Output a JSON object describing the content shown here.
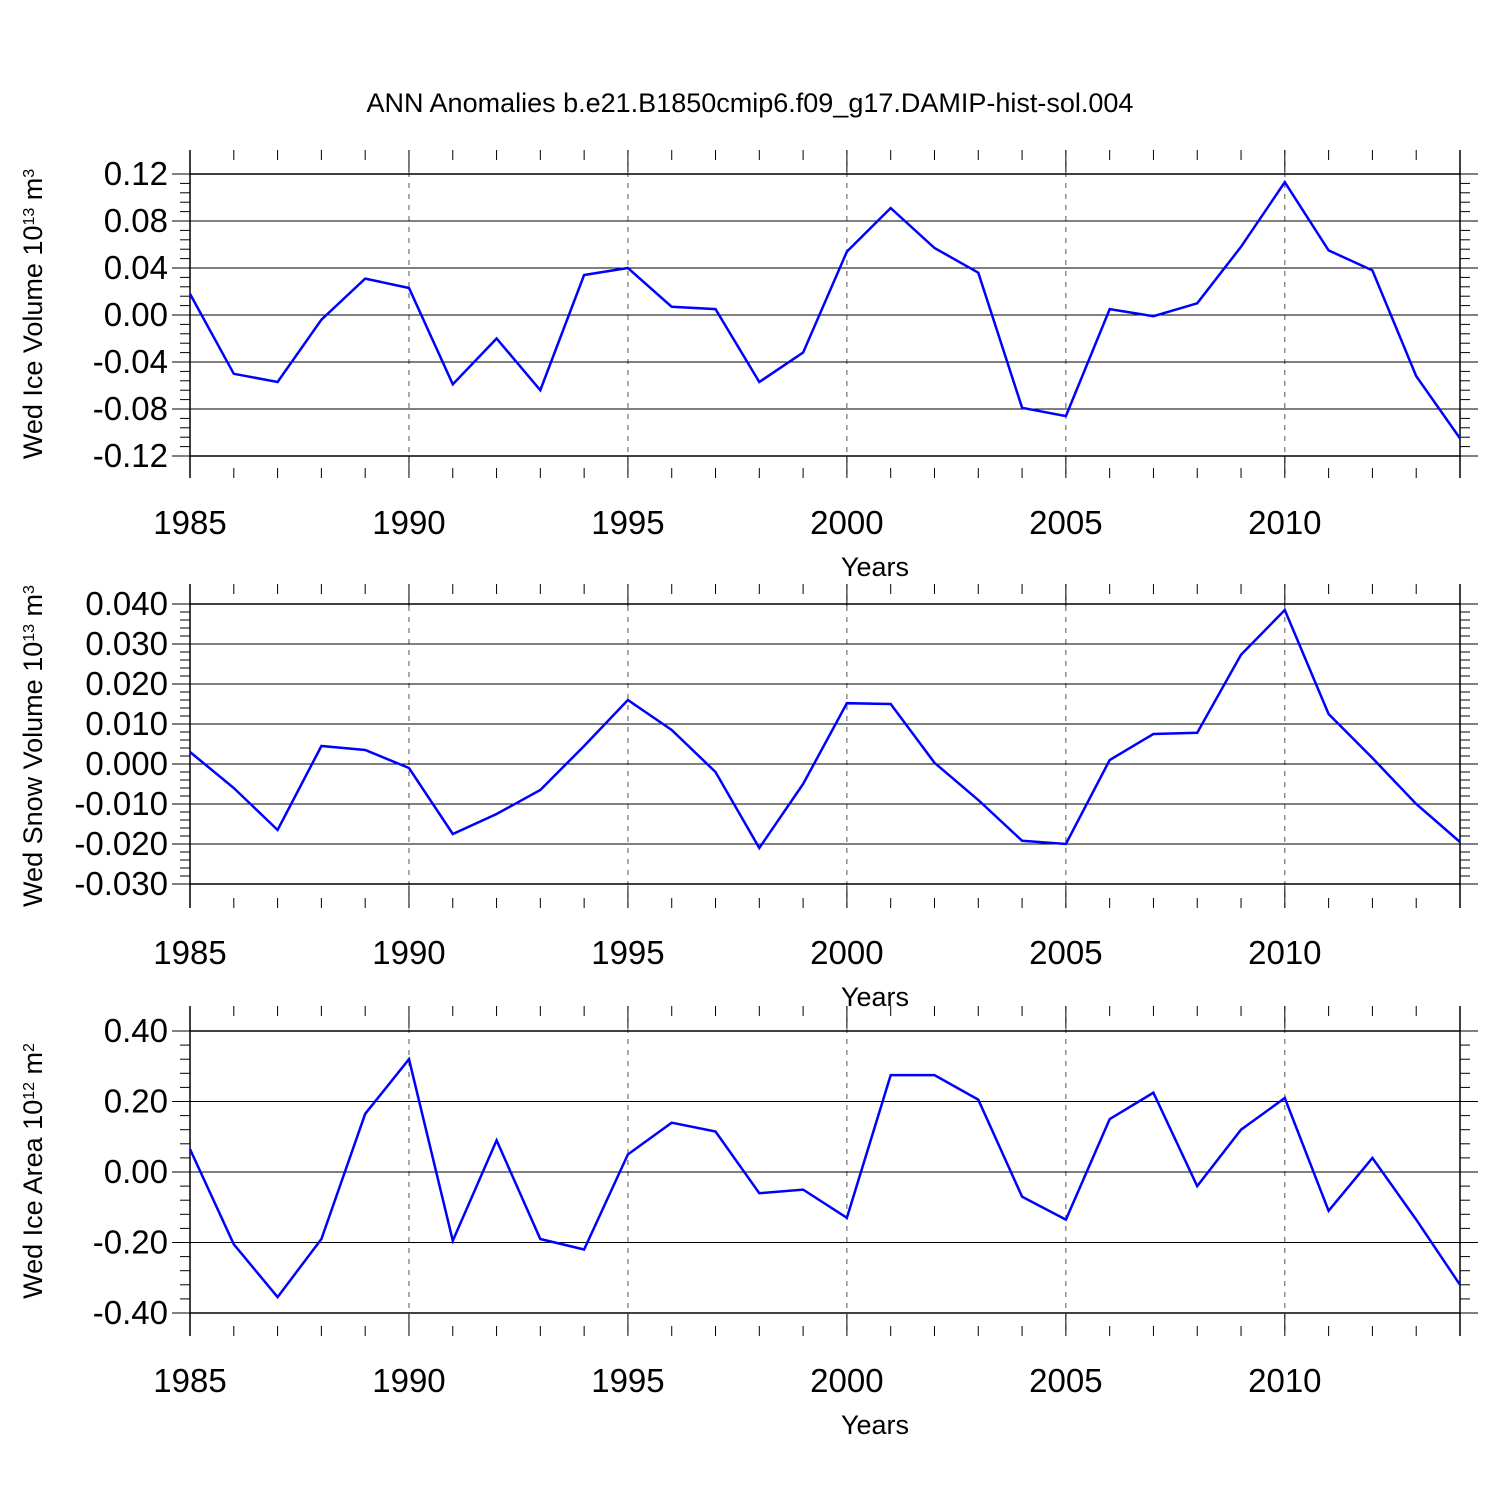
{
  "title": "ANN Anomalies b.e21.B1850cmip6.f09_g17.DAMIP-hist-sol.004",
  "chart_data": [
    {
      "type": "line",
      "ylabel": {
        "text": "Wed Ice Volume 10",
        "sup": "13",
        "unit": " m",
        "unit_sup": "3"
      },
      "xlabel": "Years",
      "x": [
        1985,
        1986,
        1987,
        1988,
        1989,
        1990,
        1991,
        1992,
        1993,
        1994,
        1995,
        1996,
        1997,
        1998,
        1999,
        2000,
        2001,
        2002,
        2003,
        2004,
        2005,
        2006,
        2007,
        2008,
        2009,
        2010,
        2011,
        2012,
        2013,
        2014
      ],
      "values": [
        0.018,
        -0.05,
        -0.057,
        -0.004,
        0.031,
        0.023,
        -0.059,
        -0.02,
        -0.064,
        0.034,
        0.04,
        0.007,
        0.005,
        -0.057,
        -0.032,
        0.054,
        0.091,
        0.057,
        0.036,
        -0.079,
        -0.086,
        0.005,
        -0.001,
        0.01,
        0.058,
        0.113,
        0.055,
        0.038,
        -0.052,
        -0.105
      ],
      "xlim": [
        1985,
        2014
      ],
      "ylim": [
        -0.12,
        0.12
      ],
      "yticks": [
        -0.12,
        -0.08,
        -0.04,
        0.0,
        0.04,
        0.08,
        0.12
      ],
      "ytick_labels": [
        "-0.12",
        "-0.08",
        "-0.04",
        "0.00",
        "0.04",
        "0.08",
        "0.12"
      ],
      "xticks": [
        1985,
        1990,
        1995,
        2000,
        2005,
        2010
      ],
      "xtick_labels": [
        "1985",
        "1990",
        "1995",
        "2000",
        "2005",
        "2010"
      ],
      "minor_step": 0.008,
      "grid": "dashed-vertical",
      "color": "#0000ff"
    },
    {
      "type": "line",
      "ylabel": {
        "text": "Wed Snow Volume 10",
        "sup": "13",
        "unit": " m",
        "unit_sup": "3"
      },
      "xlabel": "Years",
      "x": [
        1985,
        1986,
        1987,
        1988,
        1989,
        1990,
        1991,
        1992,
        1993,
        1994,
        1995,
        1996,
        1997,
        1998,
        1999,
        2000,
        2001,
        2002,
        2003,
        2004,
        2005,
        2006,
        2007,
        2008,
        2009,
        2010,
        2011,
        2012,
        2013,
        2014
      ],
      "values": [
        0.003,
        -0.006,
        -0.0165,
        0.0045,
        0.0035,
        -0.001,
        -0.0175,
        -0.0125,
        -0.0065,
        0.0045,
        0.016,
        0.0085,
        -0.002,
        -0.021,
        -0.005,
        0.0152,
        0.015,
        0.0003,
        -0.009,
        -0.0192,
        -0.02,
        0.001,
        0.0075,
        0.0078,
        0.0273,
        0.0385,
        0.0125,
        0.0015,
        -0.01,
        -0.0195
      ],
      "xlim": [
        1985,
        2014
      ],
      "ylim": [
        -0.03,
        0.04
      ],
      "yticks": [
        -0.03,
        -0.02,
        -0.01,
        0.0,
        0.01,
        0.02,
        0.03,
        0.04
      ],
      "ytick_labels": [
        "-0.030",
        "-0.020",
        "-0.010",
        "0.000",
        "0.010",
        "0.020",
        "0.030",
        "0.040"
      ],
      "xticks": [
        1985,
        1990,
        1995,
        2000,
        2005,
        2010
      ],
      "xtick_labels": [
        "1985",
        "1990",
        "1995",
        "2000",
        "2005",
        "2010"
      ],
      "minor_step": 0.002,
      "grid": "dashed-vertical",
      "color": "#0000ff"
    },
    {
      "type": "line",
      "ylabel": {
        "text": "Wed Ice Area 10",
        "sup": "12",
        "unit": " m",
        "unit_sup": "2"
      },
      "xlabel": "Years",
      "x": [
        1985,
        1986,
        1987,
        1988,
        1989,
        1990,
        1991,
        1992,
        1993,
        1994,
        1995,
        1996,
        1997,
        1998,
        1999,
        2000,
        2001,
        2002,
        2003,
        2004,
        2005,
        2006,
        2007,
        2008,
        2009,
        2010,
        2011,
        2012,
        2013,
        2014
      ],
      "values": [
        0.065,
        -0.205,
        -0.355,
        -0.19,
        0.165,
        0.32,
        -0.195,
        0.09,
        -0.19,
        -0.22,
        0.05,
        0.14,
        0.115,
        -0.06,
        -0.05,
        -0.13,
        0.275,
        0.275,
        0.205,
        -0.07,
        -0.135,
        0.15,
        0.225,
        -0.04,
        0.12,
        0.21,
        -0.11,
        0.04,
        -0.135,
        -0.32
      ],
      "xlim": [
        1985,
        2014
      ],
      "ylim": [
        -0.4,
        0.4
      ],
      "yticks": [
        -0.4,
        -0.2,
        0.0,
        0.2,
        0.4
      ],
      "ytick_labels": [
        "-0.40",
        "-0.20",
        "0.00",
        "0.20",
        "0.40"
      ],
      "xticks": [
        1985,
        1990,
        1995,
        2000,
        2005,
        2010
      ],
      "xtick_labels": [
        "1985",
        "1990",
        "1995",
        "2000",
        "2005",
        "2010"
      ],
      "minor_step": 0.04,
      "grid": "dashed-vertical",
      "color": "#0000ff"
    }
  ]
}
